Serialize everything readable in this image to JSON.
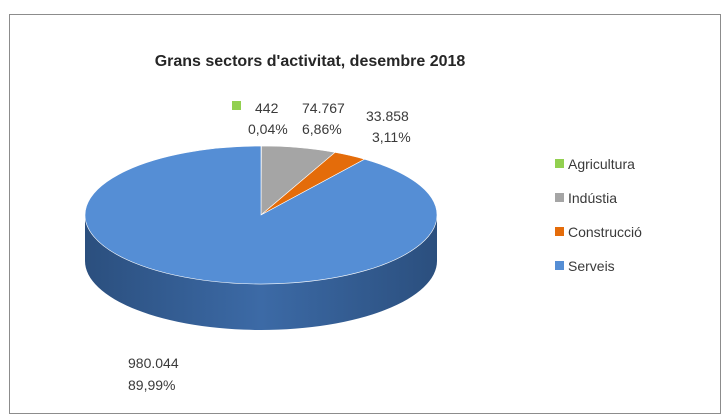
{
  "chart_data": {
    "type": "pie",
    "title": "Grans sectors d'activitat, desembre 2018",
    "categories": [
      "Agricultura",
      "Indústia",
      "Construcció",
      "Serveis"
    ],
    "values": [
      442,
      74767,
      33858,
      980044
    ],
    "value_labels": [
      "442",
      "74.767",
      "33.858",
      "980.044"
    ],
    "percent_labels": [
      "0,04%",
      "6,86%",
      "3,11%",
      "89,99%"
    ],
    "colors": [
      "#92d050",
      "#a5a5a5",
      "#e46c0a",
      "#558ed5"
    ],
    "legend_position": "right",
    "style": "3d"
  }
}
